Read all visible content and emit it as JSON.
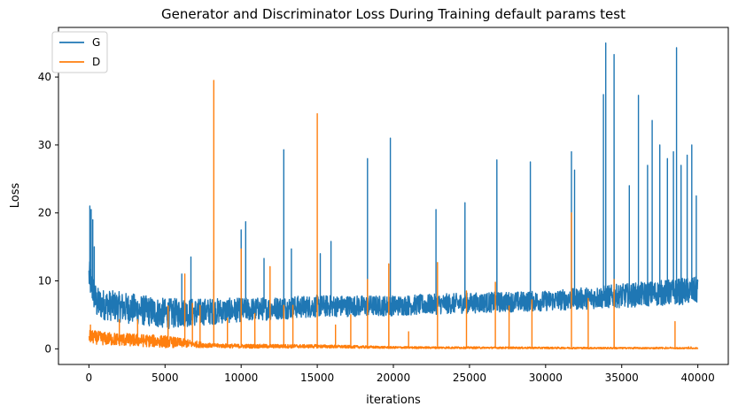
{
  "chart_data": {
    "type": "line",
    "title": "Generator and Discriminator Loss During Training default params test",
    "xlabel": "iterations",
    "ylabel": "Loss",
    "xlim": [
      -2000,
      42000
    ],
    "ylim": [
      -2.3,
      47.3
    ],
    "xticks": [
      0,
      5000,
      10000,
      15000,
      20000,
      25000,
      30000,
      35000,
      40000
    ],
    "yticks": [
      0,
      10,
      20,
      30,
      40
    ],
    "grid": false,
    "legend": "top-left",
    "series": [
      {
        "name": "G",
        "color": "#1f77b4",
        "baseline": [
          [
            0,
            10.0
          ],
          [
            500,
            6.0
          ],
          [
            5000,
            4.5
          ],
          [
            10000,
            5.2
          ],
          [
            15000,
            5.8
          ],
          [
            20000,
            5.9
          ],
          [
            25000,
            6.3
          ],
          [
            30000,
            6.6
          ],
          [
            33000,
            7.0
          ],
          [
            40000,
            8.0
          ]
        ],
        "band": [
          [
            0,
            5.0
          ],
          [
            1000,
            4.5
          ],
          [
            5000,
            4.5
          ],
          [
            10000,
            3.5
          ],
          [
            20000,
            3.0
          ],
          [
            30000,
            3.0
          ],
          [
            40000,
            4.0
          ]
        ],
        "spikes": [
          [
            60,
            21
          ],
          [
            150,
            20.5
          ],
          [
            250,
            19
          ],
          [
            350,
            15
          ],
          [
            6100,
            11
          ],
          [
            6700,
            13.5
          ],
          [
            8200,
            11.5
          ],
          [
            10000,
            17.5
          ],
          [
            10300,
            18.7
          ],
          [
            11500,
            13.3
          ],
          [
            12800,
            29.3
          ],
          [
            13300,
            14.7
          ],
          [
            15200,
            14
          ],
          [
            15900,
            15.8
          ],
          [
            18300,
            28
          ],
          [
            19800,
            31
          ],
          [
            22800,
            20.5
          ],
          [
            24700,
            21.5
          ],
          [
            26800,
            27.8
          ],
          [
            29000,
            27.5
          ],
          [
            31700,
            29
          ],
          [
            31900,
            26.3
          ],
          [
            33800,
            37.4
          ],
          [
            33950,
            45
          ],
          [
            34500,
            43.3
          ],
          [
            35500,
            24
          ],
          [
            36100,
            37.3
          ],
          [
            36700,
            27
          ],
          [
            37000,
            33.6
          ],
          [
            37500,
            30
          ],
          [
            38000,
            28
          ],
          [
            38400,
            29
          ],
          [
            38600,
            44.3
          ],
          [
            38900,
            27
          ],
          [
            39300,
            28.5
          ],
          [
            39600,
            30
          ],
          [
            39900,
            22.5
          ]
        ]
      },
      {
        "name": "D",
        "color": "#ff7f0e",
        "baseline": [
          [
            0,
            1.5
          ],
          [
            1000,
            1.2
          ],
          [
            5000,
            0.8
          ],
          [
            8000,
            0.4
          ],
          [
            10000,
            0.3
          ],
          [
            15000,
            0.3
          ],
          [
            20000,
            0.15
          ],
          [
            30000,
            0.1
          ],
          [
            40000,
            0.05
          ]
        ],
        "band": [
          [
            0,
            2.0
          ],
          [
            5000,
            1.8
          ],
          [
            8000,
            0.6
          ],
          [
            10000,
            0.6
          ],
          [
            15000,
            0.5
          ],
          [
            20000,
            0.3
          ],
          [
            40000,
            0.2
          ]
        ],
        "spikes": [
          [
            100,
            3.5
          ],
          [
            2000,
            4.3
          ],
          [
            3200,
            4.3
          ],
          [
            5200,
            6.3
          ],
          [
            6300,
            11.0
          ],
          [
            6800,
            6.7
          ],
          [
            7300,
            6.4
          ],
          [
            8200,
            39.5
          ],
          [
            9100,
            4.5
          ],
          [
            10000,
            14.7
          ],
          [
            10900,
            5.2
          ],
          [
            11900,
            12.1
          ],
          [
            12800,
            6.4
          ],
          [
            13400,
            6.4
          ],
          [
            15000,
            34.6
          ],
          [
            16200,
            3.5
          ],
          [
            17200,
            5.0
          ],
          [
            18300,
            10.2
          ],
          [
            19700,
            12.5
          ],
          [
            21000,
            2.5
          ],
          [
            22900,
            12.7
          ],
          [
            24800,
            8.5
          ],
          [
            26700,
            9.8
          ],
          [
            27600,
            6.3
          ],
          [
            29100,
            7.2
          ],
          [
            31700,
            20.0
          ],
          [
            32800,
            7.4
          ],
          [
            34500,
            10.2
          ],
          [
            38500,
            4.0
          ]
        ]
      }
    ]
  }
}
